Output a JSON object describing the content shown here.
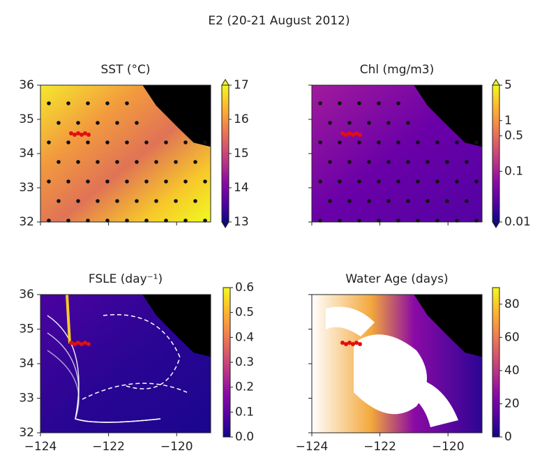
{
  "title": "E2  (20-21 August 2012)",
  "chart_data": [
    {
      "type": "heatmap",
      "title": "SST (°C)",
      "xlim": [
        -124,
        -119
      ],
      "ylim": [
        32,
        36
      ],
      "xticks": [
        -124,
        -122,
        -120
      ],
      "yticks": [
        32,
        33,
        34,
        35,
        36
      ],
      "cmap": "plasma",
      "clim": [
        13,
        17
      ],
      "cticks": [
        13,
        14,
        15,
        16,
        17
      ],
      "extend": "both"
    },
    {
      "type": "heatmap",
      "title": "Chl (mg/m3)",
      "xlim": [
        -124,
        -119
      ],
      "ylim": [
        32,
        36
      ],
      "xticks": [
        -124,
        -122,
        -120
      ],
      "yticks": [
        32,
        33,
        34,
        35,
        36
      ],
      "cmap": "plasma",
      "clim": [
        0.01,
        5
      ],
      "clog": true,
      "cticks": [
        0.01,
        0.1,
        0.5,
        1,
        5
      ],
      "extend": "both"
    },
    {
      "type": "heatmap",
      "title": "FSLE (day⁻¹)",
      "xlim": [
        -124,
        -119
      ],
      "ylim": [
        32,
        36
      ],
      "xticks": [
        {
          "value": -124,
          "label": "−124"
        },
        {
          "value": -122,
          "label": "−122"
        },
        {
          "value": -120,
          "label": "−120"
        }
      ],
      "yticks": [
        32,
        33,
        34,
        35,
        36
      ],
      "cmap": "plasma",
      "clim": [
        0,
        0.6
      ],
      "cticks": [
        {
          "value": 0,
          "label": "0.0"
        },
        0.1,
        0.2,
        0.3,
        0.4,
        0.5,
        0.6
      ]
    },
    {
      "type": "heatmap",
      "title": "Water Age (days)",
      "xlim": [
        -124,
        -119
      ],
      "ylim": [
        32,
        36
      ],
      "xticks": [
        {
          "value": -124,
          "label": "−124"
        },
        {
          "value": -122,
          "label": "−122"
        },
        {
          "value": -120,
          "label": "−120"
        }
      ],
      "yticks": [
        32,
        33,
        34,
        35,
        36
      ],
      "cmap": "plasma",
      "clim": [
        0,
        90
      ],
      "cticks": [
        0,
        20,
        40,
        60,
        80
      ]
    }
  ]
}
